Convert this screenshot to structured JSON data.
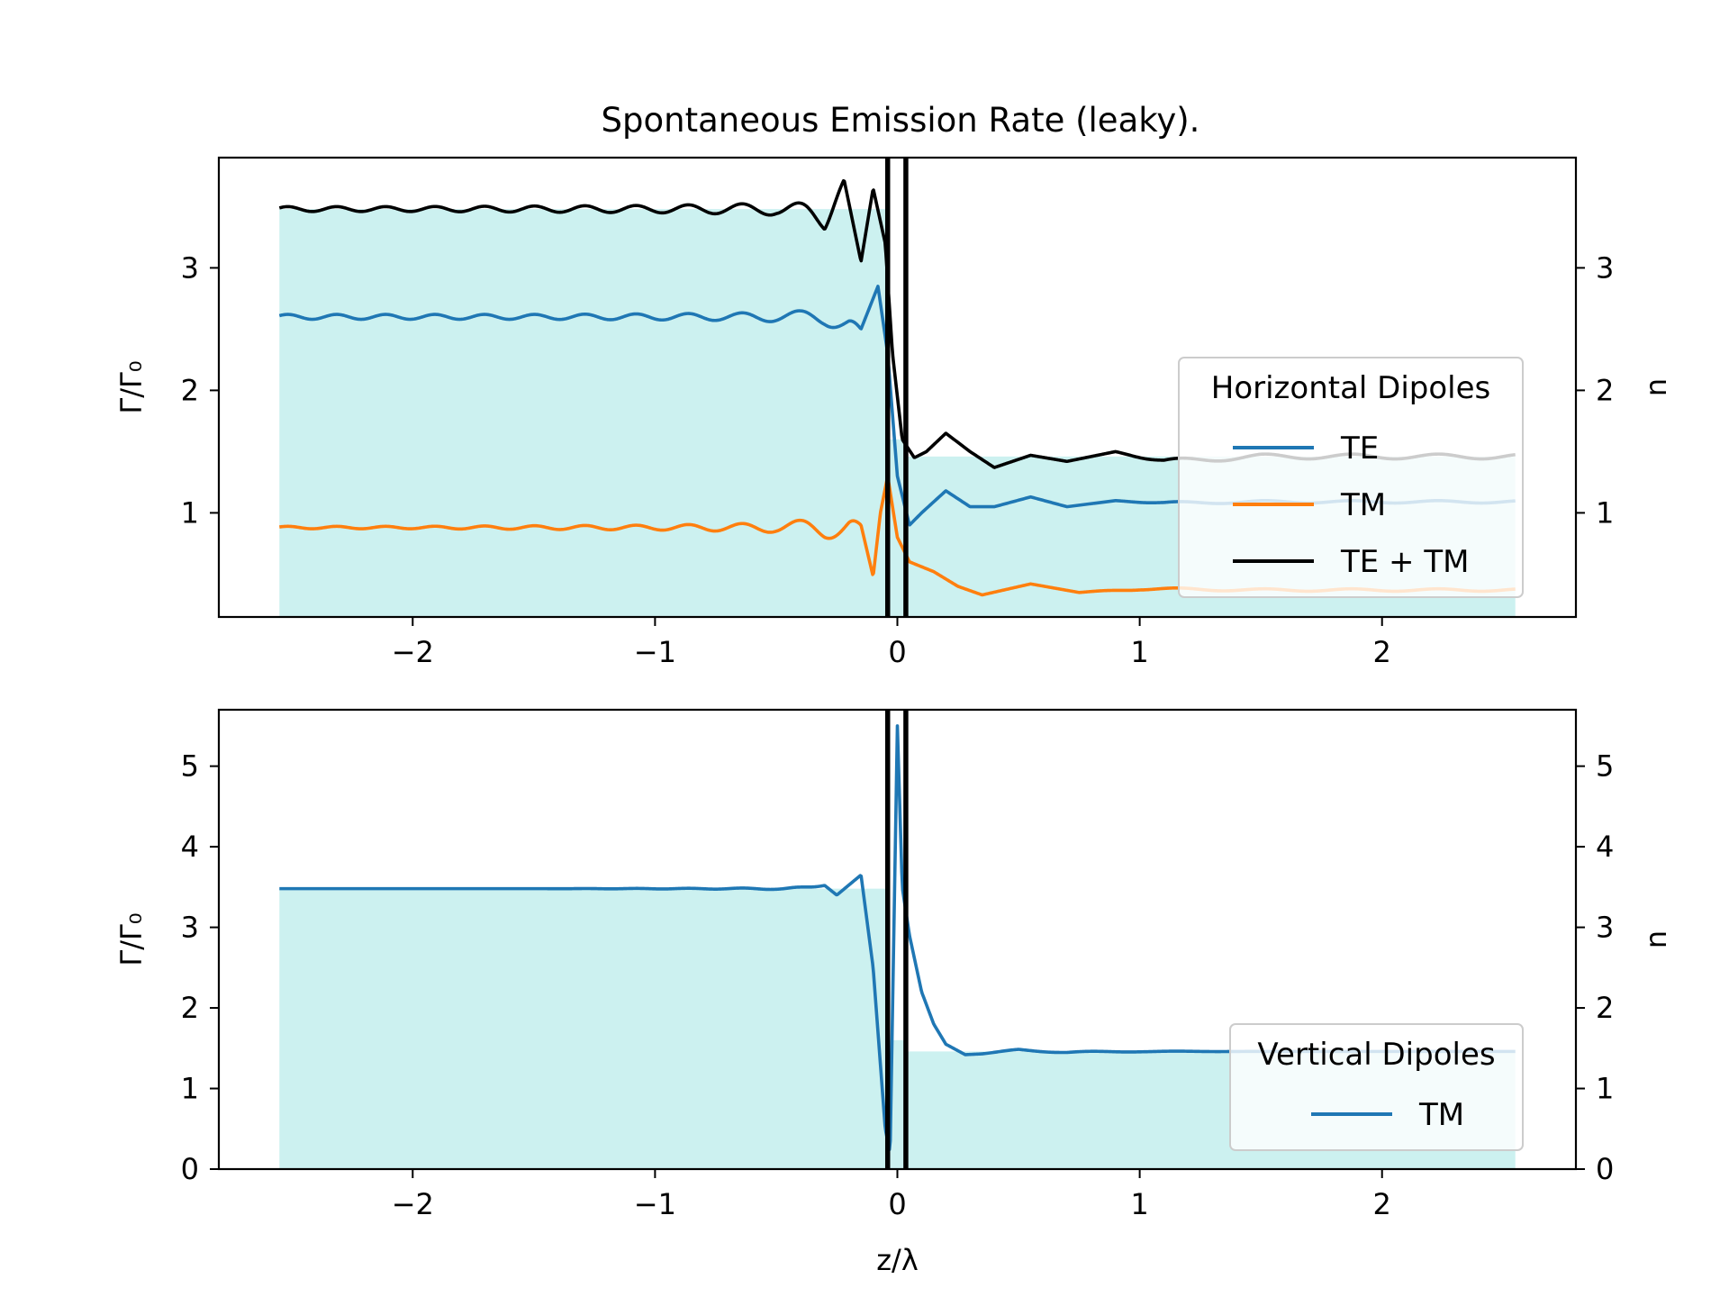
{
  "figure_title": "Spontaneous Emission Rate (leaky).",
  "chart_data": [
    {
      "type": "line",
      "panel": "top",
      "title": "Spontaneous Emission Rate (leaky).",
      "xlabel": "",
      "ylabel": "Γ/Γ₀",
      "ylabel_right": "n",
      "xlim": [
        -2.8,
        2.8
      ],
      "ylim": [
        0.15,
        3.9
      ],
      "xticks": [
        -2,
        -1,
        0,
        1,
        2
      ],
      "xtick_labels": [
        "−2",
        "−1",
        "0",
        "1",
        "2"
      ],
      "yticks": [
        1,
        2,
        3
      ],
      "ytick_labels": [
        "1",
        "2",
        "3"
      ],
      "grid": false,
      "legend": {
        "title": "Horizontal Dipoles",
        "placement": "right",
        "entries": [
          "TE",
          "TM",
          "TE + TM"
        ]
      },
      "index_profile": {
        "name": "n",
        "color": "#ccf1f0",
        "segments": [
          {
            "x0": -2.55,
            "x1": -0.05,
            "n": 3.48
          },
          {
            "x0": -0.05,
            "x1": 0.03,
            "n": 1.6
          },
          {
            "x0": 0.03,
            "x1": 2.55,
            "n": 1.46
          }
        ]
      },
      "interfaces": [
        -0.04,
        0.035
      ],
      "series": [
        {
          "name": "TE",
          "color": "#1f77b4",
          "x": [
            -2.55,
            -2.0,
            -1.5,
            -1.0,
            -0.7,
            -0.5,
            -0.4,
            -0.3,
            -0.2,
            -0.15,
            -0.08,
            -0.04,
            0.0,
            0.05,
            0.1,
            0.2,
            0.3,
            0.4,
            0.55,
            0.7,
            0.9,
            1.1,
            1.5,
            2.0,
            2.55
          ],
          "y": [
            2.6,
            2.6,
            2.6,
            2.6,
            2.6,
            2.6,
            2.6,
            2.6,
            2.55,
            2.5,
            2.85,
            2.3,
            1.3,
            0.9,
            1.0,
            1.18,
            1.05,
            1.05,
            1.13,
            1.05,
            1.1,
            1.08,
            1.09,
            1.09,
            1.09
          ],
          "osc_amp": [
            0.02,
            0.02,
            0.02,
            0.025,
            0.03,
            0.04,
            0.05,
            0.07,
            0.08,
            0,
            0,
            0,
            0,
            0,
            0,
            0,
            0,
            0,
            0,
            0,
            0,
            0.01,
            0.01,
            0.01,
            0.01
          ]
        },
        {
          "name": "TM",
          "color": "#ff7f0e",
          "x": [
            -2.55,
            -2.0,
            -1.5,
            -1.0,
            -0.7,
            -0.5,
            -0.4,
            -0.3,
            -0.2,
            -0.15,
            -0.1,
            -0.07,
            -0.04,
            0.0,
            0.05,
            0.15,
            0.25,
            0.35,
            0.55,
            0.75,
            1.0,
            1.5,
            2.0,
            2.55
          ],
          "y": [
            0.88,
            0.88,
            0.88,
            0.88,
            0.88,
            0.88,
            0.88,
            0.88,
            0.9,
            0.9,
            0.48,
            1.0,
            1.3,
            0.8,
            0.6,
            0.52,
            0.4,
            0.33,
            0.42,
            0.35,
            0.38,
            0.37,
            0.37,
            0.37
          ],
          "osc_amp": [
            0.01,
            0.01,
            0.015,
            0.02,
            0.03,
            0.04,
            0.06,
            0.09,
            0.1,
            0,
            0,
            0,
            0,
            0,
            0,
            0,
            0,
            0,
            0,
            0,
            0.01,
            0.01,
            0.01,
            0.01
          ]
        },
        {
          "name": "TE + TM",
          "color": "#000000",
          "x": [
            -2.55,
            -2.0,
            -1.5,
            -1.0,
            -0.7,
            -0.5,
            -0.4,
            -0.3,
            -0.22,
            -0.15,
            -0.1,
            -0.05,
            -0.02,
            0.02,
            0.07,
            0.12,
            0.2,
            0.3,
            0.4,
            0.55,
            0.7,
            0.9,
            1.1,
            1.5,
            2.0,
            2.55
          ],
          "y": [
            3.48,
            3.48,
            3.48,
            3.48,
            3.48,
            3.48,
            3.45,
            3.42,
            3.72,
            3.05,
            3.65,
            3.2,
            2.3,
            1.6,
            1.45,
            1.5,
            1.65,
            1.5,
            1.37,
            1.47,
            1.42,
            1.5,
            1.42,
            1.46,
            1.46,
            1.46
          ],
          "osc_amp": [
            0.02,
            0.02,
            0.025,
            0.03,
            0.04,
            0.05,
            0.08,
            0.12,
            0,
            0,
            0,
            0,
            0,
            0,
            0,
            0,
            0,
            0,
            0,
            0,
            0,
            0,
            0.02,
            0.02,
            0.02,
            0.02
          ]
        }
      ]
    },
    {
      "type": "line",
      "panel": "bottom",
      "xlabel": "z/λ",
      "ylabel": "Γ/Γ₀",
      "ylabel_right": "n",
      "xlim": [
        -2.8,
        2.8
      ],
      "ylim": [
        0,
        5.7
      ],
      "xticks": [
        -2,
        -1,
        0,
        1,
        2
      ],
      "xtick_labels": [
        "−2",
        "−1",
        "0",
        "1",
        "2"
      ],
      "yticks": [
        0,
        1,
        2,
        3,
        4,
        5
      ],
      "ytick_labels": [
        "0",
        "1",
        "2",
        "3",
        "4",
        "5"
      ],
      "grid": false,
      "legend": {
        "title": "Vertical Dipoles",
        "placement": "lower right",
        "entries": [
          "TM"
        ]
      },
      "index_profile": {
        "name": "n",
        "color": "#ccf1f0",
        "segments": [
          {
            "x0": -2.55,
            "x1": -0.05,
            "n": 3.48
          },
          {
            "x0": -0.05,
            "x1": 0.03,
            "n": 1.6
          },
          {
            "x0": 0.03,
            "x1": 2.55,
            "n": 1.46
          }
        ]
      },
      "interfaces": [
        -0.04,
        0.035
      ],
      "series": [
        {
          "name": "TM",
          "color": "#1f77b4",
          "x": [
            -2.55,
            -1.5,
            -0.8,
            -0.5,
            -0.4,
            -0.3,
            -0.25,
            -0.15,
            -0.1,
            -0.05,
            -0.03,
            0.0,
            0.02,
            0.05,
            0.1,
            0.15,
            0.2,
            0.28,
            0.35,
            0.5,
            0.7,
            1.0,
            1.5,
            2.0,
            2.55
          ],
          "y": [
            3.48,
            3.48,
            3.48,
            3.48,
            3.48,
            3.52,
            3.4,
            3.65,
            2.5,
            0.5,
            0.2,
            5.5,
            3.5,
            2.9,
            2.2,
            1.8,
            1.55,
            1.42,
            1.43,
            1.48,
            1.45,
            1.46,
            1.46,
            1.46,
            1.46
          ],
          "osc_amp": [
            0,
            0,
            0.005,
            0.01,
            0.02,
            0,
            0,
            0,
            0,
            0,
            0,
            0,
            0,
            0,
            0,
            0,
            0,
            0,
            0,
            0.01,
            0.01,
            0.005,
            0,
            0,
            0
          ]
        }
      ]
    }
  ]
}
